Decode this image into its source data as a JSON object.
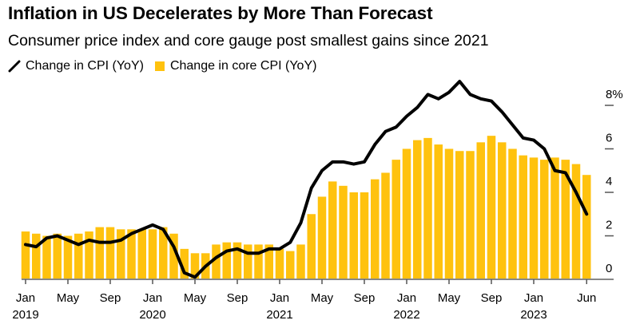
{
  "header": {
    "title": "Inflation in US Decelerates by More Than Forecast",
    "subtitle": "Consumer price index and core gauge post smallest gains since 2021"
  },
  "legend": {
    "items": [
      {
        "label": "Change in CPI (YoY)",
        "icon": "line-icon",
        "color": "#000000"
      },
      {
        "label": "Change in core CPI (YoY)",
        "icon": "square-icon",
        "color": "#FFC20E"
      }
    ]
  },
  "chart_data": {
    "type": "bar",
    "title": "Inflation in US Decelerates by More Than Forecast",
    "subtitle": "Consumer price index and core gauge post smallest gains since 2021",
    "xlabel": "",
    "ylabel": "",
    "ylim": [
      0,
      9.2
    ],
    "y_axis_side": "right",
    "y_ticks": [
      0,
      2,
      4,
      6,
      8
    ],
    "y_tick_labels": [
      "0",
      "2",
      "4",
      "6",
      "8%"
    ],
    "x_ticks": [
      {
        "index": 0,
        "label": "Jan",
        "year": "2019"
      },
      {
        "index": 4,
        "label": "May",
        "year": ""
      },
      {
        "index": 8,
        "label": "Sep",
        "year": ""
      },
      {
        "index": 12,
        "label": "Jan",
        "year": "2020"
      },
      {
        "index": 16,
        "label": "May",
        "year": ""
      },
      {
        "index": 20,
        "label": "Sep",
        "year": ""
      },
      {
        "index": 24,
        "label": "Jan",
        "year": "2021"
      },
      {
        "index": 28,
        "label": "May",
        "year": ""
      },
      {
        "index": 32,
        "label": "Sep",
        "year": ""
      },
      {
        "index": 36,
        "label": "Jan",
        "year": "2022"
      },
      {
        "index": 40,
        "label": "May",
        "year": ""
      },
      {
        "index": 44,
        "label": "Sep",
        "year": ""
      },
      {
        "index": 48,
        "label": "Jan",
        "year": "2023"
      },
      {
        "index": 53,
        "label": "Jun",
        "year": ""
      }
    ],
    "grid": false,
    "legend_position": "top-left",
    "categories": [
      "2019-01",
      "2019-02",
      "2019-03",
      "2019-04",
      "2019-05",
      "2019-06",
      "2019-07",
      "2019-08",
      "2019-09",
      "2019-10",
      "2019-11",
      "2019-12",
      "2020-01",
      "2020-02",
      "2020-03",
      "2020-04",
      "2020-05",
      "2020-06",
      "2020-07",
      "2020-08",
      "2020-09",
      "2020-10",
      "2020-11",
      "2020-12",
      "2021-01",
      "2021-02",
      "2021-03",
      "2021-04",
      "2021-05",
      "2021-06",
      "2021-07",
      "2021-08",
      "2021-09",
      "2021-10",
      "2021-11",
      "2021-12",
      "2022-01",
      "2022-02",
      "2022-03",
      "2022-04",
      "2022-05",
      "2022-06",
      "2022-07",
      "2022-08",
      "2022-09",
      "2022-10",
      "2022-11",
      "2022-12",
      "2023-01",
      "2023-02",
      "2023-03",
      "2023-04",
      "2023-05",
      "2023-06"
    ],
    "series": [
      {
        "name": "Change in core CPI (YoY)",
        "type": "bar",
        "color": "#FFC20E",
        "values": [
          2.2,
          2.1,
          2.0,
          2.1,
          2.0,
          2.1,
          2.2,
          2.4,
          2.4,
          2.3,
          2.3,
          2.3,
          2.3,
          2.4,
          2.1,
          1.4,
          1.2,
          1.2,
          1.6,
          1.7,
          1.7,
          1.6,
          1.6,
          1.6,
          1.4,
          1.3,
          1.6,
          3.0,
          3.8,
          4.5,
          4.3,
          4.0,
          4.0,
          4.6,
          4.9,
          5.5,
          6.0,
          6.4,
          6.5,
          6.2,
          6.0,
          5.9,
          5.9,
          6.3,
          6.6,
          6.3,
          6.0,
          5.7,
          5.6,
          5.5,
          5.6,
          5.5,
          5.3,
          4.8
        ]
      },
      {
        "name": "Change in CPI (YoY)",
        "type": "line",
        "color": "#000000",
        "values": [
          1.6,
          1.5,
          1.9,
          2.0,
          1.8,
          1.6,
          1.8,
          1.7,
          1.7,
          1.8,
          2.1,
          2.3,
          2.5,
          2.3,
          1.5,
          0.3,
          0.1,
          0.6,
          1.0,
          1.3,
          1.4,
          1.2,
          1.2,
          1.4,
          1.4,
          1.7,
          2.6,
          4.2,
          5.0,
          5.4,
          5.4,
          5.3,
          5.4,
          6.2,
          6.8,
          7.0,
          7.5,
          7.9,
          8.5,
          8.3,
          8.6,
          9.1,
          8.5,
          8.3,
          8.2,
          7.7,
          7.1,
          6.5,
          6.4,
          6.0,
          5.0,
          4.9,
          4.0,
          3.0
        ]
      }
    ]
  }
}
